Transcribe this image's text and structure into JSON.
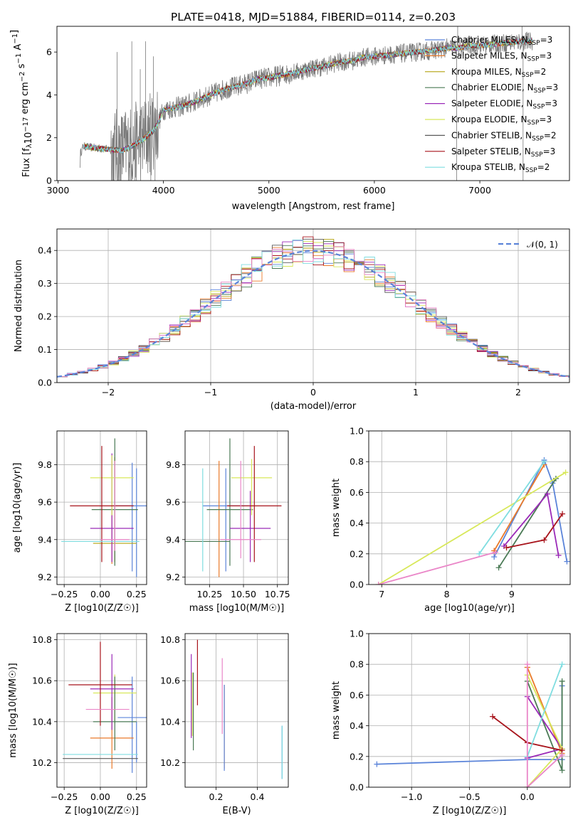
{
  "title": "PLATE=0418, MJD=51884, FIBERID=0114, z=0.203",
  "colors": {
    "blue": "#5b84d9",
    "orange": "#ea7a2a",
    "olive": "#b3a20f",
    "green": "#4a7a55",
    "purple": "#9b2ab8",
    "yellow": "#d8e85a",
    "gray": "#5a5a5a",
    "red": "#a8141c",
    "cyan": "#7fdde0",
    "pink": "#ea86c8",
    "data": "#7a7a7a"
  },
  "chart_data": [
    {
      "id": "spectrum",
      "type": "line",
      "xlabel": "wavelength [Angstrom, rest frame]",
      "ylabel": "Flux [f_λ 10^-17 erg cm^-2 s^-1 A^-1]",
      "xlim": [
        2990,
        7850
      ],
      "ylim": [
        0,
        7.2
      ],
      "xticks": [
        3000,
        4000,
        5000,
        6000,
        7000
      ],
      "yticks": [
        0,
        2,
        4,
        6
      ],
      "grid": false,
      "legend_position": "right",
      "legend": [
        {
          "label": "Chabrier MILES, N_SSP=3",
          "color": "#5b84d9"
        },
        {
          "label": "Salpeter MILES, N_SSP=3",
          "color": "#ea7a2a"
        },
        {
          "label": "Kroupa MILES, N_SSP=2",
          "color": "#b3a20f"
        },
        {
          "label": "Chabrier ELODIE, N_SSP=3",
          "color": "#4a7a55"
        },
        {
          "label": "Salpeter ELODIE, N_SSP=3",
          "color": "#9b2ab8"
        },
        {
          "label": "Kroupa ELODIE, N_SSP=3",
          "color": "#d8e85a"
        },
        {
          "label": "Chabrier STELIB, N_SSP=2",
          "color": "#5a5a5a"
        },
        {
          "label": "Salpeter STELIB, N_SSP=3",
          "color": "#a8141c"
        },
        {
          "label": "Kroupa STELIB, N_SSP=2",
          "color": "#7fdde0"
        }
      ],
      "continuum": [
        [
          3210,
          1.25
        ],
        [
          3240,
          1.6
        ],
        [
          3300,
          1.55
        ],
        [
          3400,
          1.5
        ],
        [
          3500,
          1.45
        ],
        [
          3600,
          1.4
        ],
        [
          3700,
          1.6
        ],
        [
          3800,
          1.9
        ],
        [
          3900,
          2.3
        ],
        [
          3950,
          2.7
        ],
        [
          4000,
          3.3
        ],
        [
          4100,
          3.4
        ],
        [
          4200,
          3.5
        ],
        [
          4300,
          3.7
        ],
        [
          4400,
          3.9
        ],
        [
          4500,
          4.1
        ],
        [
          4600,
          4.3
        ],
        [
          4700,
          4.4
        ],
        [
          4800,
          4.55
        ],
        [
          4900,
          4.75
        ],
        [
          5000,
          4.8
        ],
        [
          5100,
          4.9
        ],
        [
          5200,
          5.0
        ],
        [
          5300,
          5.1
        ],
        [
          5400,
          5.25
        ],
        [
          5500,
          5.3
        ],
        [
          5600,
          5.45
        ],
        [
          5700,
          5.55
        ],
        [
          5800,
          5.6
        ],
        [
          5900,
          5.75
        ],
        [
          6000,
          5.8
        ],
        [
          6100,
          5.85
        ],
        [
          6200,
          5.9
        ],
        [
          6300,
          5.95
        ],
        [
          6400,
          6.0
        ],
        [
          6500,
          6.05
        ],
        [
          6600,
          6.1
        ],
        [
          6700,
          6.2
        ],
        [
          6800,
          6.2
        ],
        [
          6900,
          6.3
        ],
        [
          7000,
          6.3
        ],
        [
          7100,
          6.35
        ],
        [
          7200,
          6.4
        ],
        [
          7300,
          6.45
        ],
        [
          7400,
          6.5
        ],
        [
          7500,
          6.5
        ]
      ]
    },
    {
      "id": "residuals",
      "type": "bar",
      "xlabel": "(data-model)/error",
      "ylabel": "Normed distribution",
      "xlim": [
        -2.5,
        2.5
      ],
      "ylim": [
        0,
        0.465
      ],
      "xticks": [
        -2,
        -1,
        0,
        1,
        2
      ],
      "yticks": [
        0.0,
        0.1,
        0.2,
        0.3,
        0.4
      ],
      "grid": true,
      "legend": [
        {
          "label": "𝒩(0, 1)",
          "color": "#5b84d9"
        }
      ],
      "bin_width": 0.1
    },
    {
      "id": "age_vs_Z",
      "type": "scatter",
      "xlabel": "Z [log10(Z/Z☉)]",
      "ylabel": "age  [log10(age/yr)]",
      "xlim": [
        -0.3,
        0.32
      ],
      "ylim": [
        9.16,
        9.98
      ],
      "xticks": [
        -0.25,
        0.0,
        0.25
      ],
      "yticks": [
        9.2,
        9.4,
        9.6,
        9.8
      ],
      "grid": true,
      "points": [
        {
          "x": 0.22,
          "y": 9.58,
          "ex": 0.13,
          "ey": [
            0.35,
            0.23
          ],
          "color": "#5b84d9"
        },
        {
          "x": 0.25,
          "y": 9.5,
          "ex": 0.0,
          "ey": [
            0.3,
            0.28
          ],
          "color": "#5b84d9"
        },
        {
          "x": 0.08,
          "y": 9.39,
          "ex": 0.0,
          "ey": [
            0.12,
            0.43
          ],
          "color": "#ea7a2a"
        },
        {
          "x": 0.1,
          "y": 9.38,
          "ex": 0.15,
          "ey": [
            0.1,
            0.46
          ],
          "color": "#b3a20f"
        },
        {
          "x": 0.1,
          "y": 9.56,
          "ex": 0.16,
          "ey": [
            0.3,
            0.38
          ],
          "color": "#4a7a55"
        },
        {
          "x": 0.08,
          "y": 9.46,
          "ex": 0.15,
          "ey": [
            0.18,
            0.4
          ],
          "color": "#9b2ab8"
        },
        {
          "x": 0.08,
          "y": 9.73,
          "ex": 0.15,
          "ey": [
            0.2,
            0.12
          ],
          "color": "#d8e85a"
        },
        {
          "x": -0.25,
          "y": 9.39,
          "ex": 0.0,
          "ey": [
            0.0,
            0.0
          ],
          "color": "#5a5a5a"
        },
        {
          "x": 0.01,
          "y": 9.58,
          "ex": 0.22,
          "ey": [
            0.3,
            0.32
          ],
          "color": "#a8141c"
        },
        {
          "x": 0.0,
          "y": 9.39,
          "ex": 0.27,
          "ey": [
            0.0,
            0.0
          ],
          "color": "#7fdde0"
        },
        {
          "x": 0.1,
          "y": 9.4,
          "ex": 0.1,
          "ey": [
            0.06,
            0.42
          ],
          "color": "#ea86c8"
        }
      ]
    },
    {
      "id": "age_vs_mass",
      "type": "scatter",
      "xlabel": "mass [log10(M/M☉)]",
      "ylabel": "",
      "xlim": [
        10.07,
        10.83
      ],
      "ylim": [
        9.16,
        9.98
      ],
      "xticks": [
        10.25,
        10.5,
        10.75
      ],
      "yticks": [
        9.2,
        9.4,
        9.6,
        9.8
      ],
      "grid": true,
      "points": [
        {
          "x": 10.37,
          "y": 9.58,
          "ex": 0.17,
          "ey": [
            0.35,
            0.2
          ],
          "color": "#5b84d9"
        },
        {
          "x": 10.32,
          "y": 9.4,
          "ex": 0.0,
          "ey": [
            0.2,
            0.42
          ],
          "color": "#ea7a2a"
        },
        {
          "x": 10.4,
          "y": 9.56,
          "ex": 0.17,
          "ey": [
            0.3,
            0.38
          ],
          "color": "#4a7a55"
        },
        {
          "x": 10.55,
          "y": 9.46,
          "ex": 0.15,
          "ey": [
            0.18,
            0.2
          ],
          "color": "#9b2ab8"
        },
        {
          "x": 10.56,
          "y": 9.73,
          "ex": 0.15,
          "ey": [
            0.2,
            0.1
          ],
          "color": "#d8e85a"
        },
        {
          "x": 10.58,
          "y": 9.58,
          "ex": 0.2,
          "ey": [
            0.3,
            0.32
          ],
          "color": "#a8141c"
        },
        {
          "x": 10.2,
          "y": 9.39,
          "ex": 0.2,
          "ey": [
            0.0,
            0.0
          ],
          "color": "#4a7a55"
        },
        {
          "x": 10.48,
          "y": 9.4,
          "ex": 0.15,
          "ey": [
            0.1,
            0.42
          ],
          "color": "#ea86c8"
        },
        {
          "x": 10.2,
          "y": 9.38,
          "ex": 0.0,
          "ey": [
            0.15,
            0.4
          ],
          "color": "#7fdde0"
        }
      ]
    },
    {
      "id": "weight_vs_age",
      "type": "line",
      "xlabel": "age  [log10(age/yr)]",
      "ylabel": "mass weight",
      "xlim": [
        6.8,
        9.9
      ],
      "ylim": [
        0.0,
        1.0
      ],
      "xticks": [
        7,
        8,
        9
      ],
      "yticks": [
        0.0,
        0.2,
        0.4,
        0.6,
        0.8,
        1.0
      ],
      "grid": true,
      "series": [
        {
          "color": "#5b84d9",
          "x": [
            8.73,
            9.5,
            9.63,
            9.85
          ],
          "y": [
            0.18,
            0.81,
            0.66,
            0.15
          ]
        },
        {
          "color": "#ea7a2a",
          "x": [
            8.73,
            9.5,
            8.73
          ],
          "y": [
            0.22,
            0.78,
            0.22
          ]
        },
        {
          "color": "#4a7a55",
          "x": [
            8.8,
            9.68
          ],
          "y": [
            0.11,
            0.69
          ]
        },
        {
          "color": "#9b2ab8",
          "x": [
            8.88,
            9.55,
            9.72
          ],
          "y": [
            0.25,
            0.59,
            0.19
          ]
        },
        {
          "color": "#d8e85a",
          "x": [
            6.95,
            9.83
          ],
          "y": [
            0.0,
            0.73
          ]
        },
        {
          "color": "#a8141c",
          "x": [
            8.92,
            9.5,
            9.78
          ],
          "y": [
            0.24,
            0.29,
            0.46
          ]
        },
        {
          "color": "#7fdde0",
          "x": [
            8.5,
            9.5
          ],
          "y": [
            0.2,
            0.8
          ]
        },
        {
          "color": "#ea86c8",
          "x": [
            6.95,
            8.75
          ],
          "y": [
            0.0,
            0.21
          ]
        }
      ]
    },
    {
      "id": "mass_vs_Z",
      "type": "scatter",
      "xlabel": "Z [log10(Z/Z☉)]",
      "ylabel": "mass [log10(M/M☉)]",
      "xlim": [
        -0.3,
        0.32
      ],
      "ylim": [
        10.08,
        10.83
      ],
      "xticks": [
        -0.25,
        0.0,
        0.25
      ],
      "yticks": [
        10.2,
        10.4,
        10.6,
        10.8
      ],
      "grid": true,
      "points": [
        {
          "x": 0.22,
          "y": 10.42,
          "ex": 0.1,
          "ey": [
            0.27,
            0.2
          ],
          "color": "#5b84d9"
        },
        {
          "x": 0.25,
          "y": 10.3,
          "ex": 0.0,
          "ey": [
            0.1,
            0.1
          ],
          "color": "#5b84d9"
        },
        {
          "x": 0.08,
          "y": 10.32,
          "ex": 0.15,
          "ey": [
            0.15,
            0.2
          ],
          "color": "#ea7a2a"
        },
        {
          "x": 0.1,
          "y": 10.54,
          "ex": 0.15,
          "ey": [
            0.15,
            0.09
          ],
          "color": "#d8e85a"
        },
        {
          "x": 0.1,
          "y": 10.4,
          "ex": 0.15,
          "ey": [
            0.14,
            0.22
          ],
          "color": "#4a7a55"
        },
        {
          "x": 0.08,
          "y": 10.56,
          "ex": 0.15,
          "ey": [
            0.2,
            0.17
          ],
          "color": "#9b2ab8"
        },
        {
          "x": 0.0,
          "y": 10.58,
          "ex": 0.22,
          "ey": [
            0.2,
            0.21
          ],
          "color": "#a8141c"
        },
        {
          "x": 0.0,
          "y": 10.24,
          "ex": 0.26,
          "ey": [
            0.0,
            0.0
          ],
          "color": "#7fdde0"
        },
        {
          "x": 0.0,
          "y": 10.22,
          "ex": 0.26,
          "ey": [
            0.0,
            0.0
          ],
          "color": "#5a5a5a"
        },
        {
          "x": 0.05,
          "y": 10.46,
          "ex": 0.15,
          "ey": [
            0.0,
            0.0
          ],
          "color": "#ea86c8"
        }
      ]
    },
    {
      "id": "mass_vs_ebv",
      "type": "scatter",
      "xlabel": "E(B-V)",
      "ylabel": "",
      "xlim": [
        0.05,
        0.55
      ],
      "ylim": [
        10.08,
        10.83
      ],
      "xticks": [
        0.2,
        0.4
      ],
      "yticks": [
        10.2,
        10.4,
        10.6,
        10.8
      ],
      "grid": true,
      "points": [
        {
          "x": 0.08,
          "y": 10.5,
          "ex": 0.0,
          "ey": [
            0.18,
            0.23
          ],
          "color": "#9b2ab8"
        },
        {
          "x": 0.09,
          "y": 10.5,
          "ex": 0.0,
          "ey": [
            0.24,
            0.14
          ],
          "color": "#4a7a55"
        },
        {
          "x": 0.085,
          "y": 10.48,
          "ex": 0.0,
          "ey": [
            0.15,
            0.16
          ],
          "color": "#d8e85a"
        },
        {
          "x": 0.11,
          "y": 10.64,
          "ex": 0.0,
          "ey": [
            0.16,
            0.16
          ],
          "color": "#a8141c"
        },
        {
          "x": 0.23,
          "y": 10.52,
          "ex": 0.0,
          "ey": [
            0.18,
            0.19
          ],
          "color": "#ea86c8"
        },
        {
          "x": 0.24,
          "y": 10.38,
          "ex": 0.0,
          "ey": [
            0.21,
            0.2
          ],
          "color": "#ea7a2a"
        },
        {
          "x": 0.24,
          "y": 10.38,
          "ex": 0.0,
          "ey": [
            0.22,
            0.2
          ],
          "color": "#5b84d9"
        },
        {
          "x": 0.52,
          "y": 10.25,
          "ex": 0.0,
          "ey": [
            0.13,
            0.13
          ],
          "color": "#5b84d9"
        },
        {
          "x": 0.52,
          "y": 10.25,
          "ex": 0.0,
          "ey": [
            0.13,
            0.13
          ],
          "color": "#7fdde0"
        }
      ]
    },
    {
      "id": "weight_vs_Z",
      "type": "line",
      "xlabel": "Z [log10(Z/Z☉)]",
      "ylabel": "mass weight",
      "xlim": [
        -1.37,
        0.37
      ],
      "ylim": [
        0.0,
        1.0
      ],
      "xticks": [
        -1.0,
        -0.5,
        0.0
      ],
      "yticks": [
        0.0,
        0.2,
        0.4,
        0.6,
        0.8,
        1.0
      ],
      "grid": true,
      "series": [
        {
          "color": "#5b84d9",
          "x": [
            -1.3,
            0.0,
            0.3,
            0.3,
            0.3
          ],
          "y": [
            0.15,
            0.18,
            0.18,
            0.66,
            0.18
          ]
        },
        {
          "color": "#ea7a2a",
          "x": [
            0.0,
            0.3,
            0.0
          ],
          "y": [
            0.78,
            0.22,
            0.78
          ]
        },
        {
          "color": "#4a7a55",
          "x": [
            0.0,
            0.3,
            0.3
          ],
          "y": [
            0.69,
            0.11,
            0.69
          ]
        },
        {
          "color": "#9b2ab8",
          "x": [
            0.0,
            0.3,
            0.0
          ],
          "y": [
            0.19,
            0.25,
            0.59
          ]
        },
        {
          "color": "#d8e85a",
          "x": [
            0.0,
            0.3,
            0.0
          ],
          "y": [
            0.73,
            0.25,
            0.0
          ]
        },
        {
          "color": "#a8141c",
          "x": [
            -0.3,
            0.0,
            0.3
          ],
          "y": [
            0.46,
            0.29,
            0.24
          ]
        },
        {
          "color": "#7fdde0",
          "x": [
            0.0,
            0.3
          ],
          "y": [
            0.2,
            0.8
          ]
        },
        {
          "color": "#ea86c8",
          "x": [
            0.0,
            0.0,
            0.3
          ],
          "y": [
            0.8,
            0.0,
            0.21
          ]
        }
      ]
    }
  ]
}
